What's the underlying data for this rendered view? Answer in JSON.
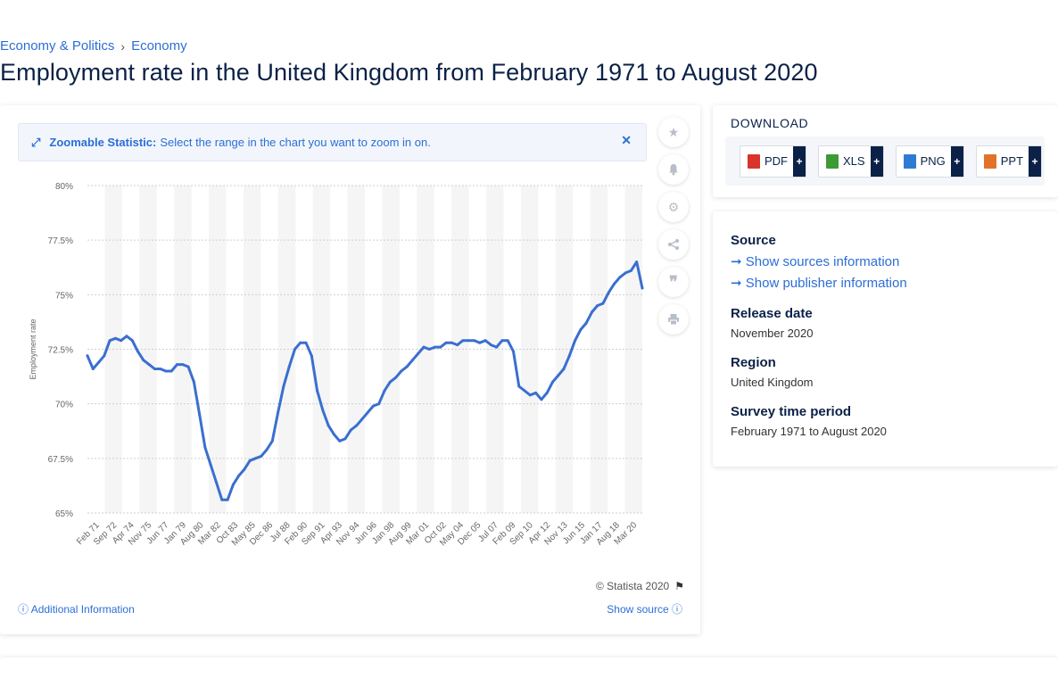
{
  "breadcrumb": {
    "items": [
      "Economy & Politics",
      "Economy"
    ],
    "separator": "›"
  },
  "page_title": "Employment rate in the United Kingdom from February 1971 to August 2020",
  "zoom_banner": {
    "strong": "Zoomable Statistic:",
    "text": "Select the range in the chart you want to zoom in on.",
    "icon": "expand-icon",
    "close_icon": "close-icon"
  },
  "tools": [
    "star-icon",
    "bell-icon",
    "gear-icon",
    "share-icon",
    "quote-icon",
    "print-icon"
  ],
  "footer": {
    "copyright": "© Statista 2020",
    "additional_info": "Additional Information",
    "show_source": "Show source"
  },
  "download": {
    "title": "DOWNLOAD",
    "buttons": [
      {
        "label": "PDF",
        "color": "#d9342b"
      },
      {
        "label": "XLS",
        "color": "#3d9b35"
      },
      {
        "label": "PNG",
        "color": "#2f7bd4"
      },
      {
        "label": "PPT",
        "color": "#e2712a"
      }
    ],
    "plus": "+"
  },
  "info": {
    "source_label": "Source",
    "sources_link": "Show sources information",
    "publisher_link": "Show publisher information",
    "release_label": "Release date",
    "release_value": "November 2020",
    "region_label": "Region",
    "region_value": "United Kingdom",
    "period_label": "Survey time period",
    "period_value": "February 1971 to August 2020"
  },
  "colors": {
    "accent": "#2c6ed5",
    "line": "#3a6fd0",
    "title": "#0b2147"
  },
  "chart_data": {
    "type": "line",
    "title": "",
    "xlabel": "",
    "ylabel": "Employment rate",
    "ylim": [
      65,
      80
    ],
    "yticks": [
      "80%",
      "77.5%",
      "75%",
      "72.5%",
      "70%",
      "67.5%",
      "65%"
    ],
    "grid": true,
    "xtick_labels": [
      "Feb 71",
      "Sep 72",
      "Apr 74",
      "Nov 75",
      "Jun 77",
      "Jan 79",
      "Aug 80",
      "Mar 82",
      "Oct 83",
      "May 85",
      "Dec 86",
      "Jul 88",
      "Feb 90",
      "Sep 91",
      "Apr 93",
      "Nov 94",
      "Jun 96",
      "Jan 98",
      "Aug 99",
      "Mar 01",
      "Oct 02",
      "May 04",
      "Dec 05",
      "Jul 07",
      "Feb 09",
      "Sep 10",
      "Apr 12",
      "Nov 13",
      "Jun 15",
      "Jan 17",
      "Aug 18",
      "Mar 20"
    ],
    "series": [
      {
        "x": [
          "1971-02",
          "1971-08",
          "1972-02",
          "1972-08",
          "1973-02",
          "1973-08",
          "1974-02",
          "1974-08",
          "1975-02",
          "1975-08",
          "1976-02",
          "1976-08",
          "1977-02",
          "1977-08",
          "1978-02",
          "1978-08",
          "1979-02",
          "1979-08",
          "1980-02",
          "1980-08",
          "1981-02",
          "1981-08",
          "1982-02",
          "1982-08",
          "1983-02",
          "1983-08",
          "1984-02",
          "1984-08",
          "1985-02",
          "1985-08",
          "1986-02",
          "1986-08",
          "1987-02",
          "1987-08",
          "1988-02",
          "1988-08",
          "1989-02",
          "1989-08",
          "1990-02",
          "1990-08",
          "1991-02",
          "1991-08",
          "1992-02",
          "1992-08",
          "1993-02",
          "1993-08",
          "1994-02",
          "1994-08",
          "1995-02",
          "1995-08",
          "1996-02",
          "1996-08",
          "1997-02",
          "1997-08",
          "1998-02",
          "1998-08",
          "1999-02",
          "1999-08",
          "2000-02",
          "2000-08",
          "2001-02",
          "2001-08",
          "2002-02",
          "2002-08",
          "2003-02",
          "2003-08",
          "2004-02",
          "2004-08",
          "2005-02",
          "2005-08",
          "2006-02",
          "2006-08",
          "2007-02",
          "2007-08",
          "2008-02",
          "2008-08",
          "2009-02",
          "2009-08",
          "2010-02",
          "2010-08",
          "2011-02",
          "2011-08",
          "2012-02",
          "2012-08",
          "2013-02",
          "2013-08",
          "2014-02",
          "2014-08",
          "2015-02",
          "2015-08",
          "2016-02",
          "2016-08",
          "2017-02",
          "2017-08",
          "2018-02",
          "2018-08",
          "2019-02",
          "2019-08",
          "2020-02",
          "2020-08"
        ],
        "values": [
          72.2,
          71.6,
          71.9,
          72.2,
          72.9,
          73.0,
          72.9,
          73.1,
          72.9,
          72.4,
          72.0,
          71.8,
          71.6,
          71.6,
          71.5,
          71.5,
          71.8,
          71.8,
          71.7,
          71.0,
          69.5,
          68.0,
          67.2,
          66.4,
          65.6,
          65.6,
          66.3,
          66.7,
          67.0,
          67.4,
          67.5,
          67.6,
          67.9,
          68.3,
          69.6,
          70.8,
          71.7,
          72.5,
          72.8,
          72.8,
          72.2,
          70.6,
          69.7,
          69.0,
          68.6,
          68.3,
          68.4,
          68.8,
          69.0,
          69.3,
          69.6,
          69.9,
          70.0,
          70.6,
          71.0,
          71.2,
          71.5,
          71.7,
          72.0,
          72.3,
          72.6,
          72.5,
          72.6,
          72.6,
          72.8,
          72.8,
          72.7,
          72.9,
          72.9,
          72.9,
          72.8,
          72.9,
          72.7,
          72.6,
          72.9,
          72.9,
          72.4,
          70.8,
          70.6,
          70.4,
          70.5,
          70.2,
          70.5,
          71.0,
          71.3,
          71.6,
          72.2,
          72.9,
          73.4,
          73.7,
          74.2,
          74.5,
          74.6,
          75.1,
          75.5,
          75.8,
          76.0,
          76.1,
          76.5,
          75.3
        ]
      }
    ]
  }
}
